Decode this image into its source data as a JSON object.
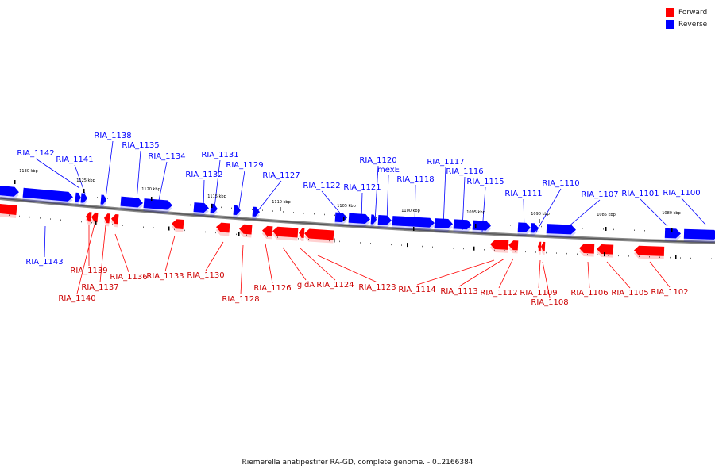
{
  "legend": {
    "forward": {
      "label": "Forward",
      "color": "#ff0000"
    },
    "reverse": {
      "label": "Reverse",
      "color": "#0000ff"
    }
  },
  "caption": "Riemerella anatipestifer RA-GD, complete genome. - 0..2166384",
  "ticks": [
    "1130 kbp",
    "1125 kbp",
    "1120 kbp",
    "1115 kbp",
    "1110 kbp",
    "1105 kbp",
    "1100 kbp",
    "1095 kbp",
    "1090 kbp",
    "1085 kbp",
    "1080 kbp"
  ],
  "reverse_labels": [
    "RIA_1142",
    "RIA_1141",
    "RIA_1138",
    "RIA_1135",
    "RIA_1134",
    "RIA_1131",
    "RIA_1132",
    "RIA_1129",
    "RIA_1127",
    "RIA_1122",
    "RIA_1121",
    "RIA_1120",
    "mexE",
    "RIA_1118",
    "RIA_1117",
    "RIA_1116",
    "RIA_1115",
    "RIA_1111",
    "RIA_1110",
    "RIA_1107",
    "RIA_1101",
    "RIA_1100",
    "RIA_1143"
  ],
  "forward_labels": [
    "RIA_1139",
    "RIA_1140",
    "RIA_1137",
    "RIA_1136",
    "RIA_1133",
    "RIA_1130",
    "RIA_1128",
    "RIA_1126",
    "gidA",
    "RIA_1124",
    "RIA_1123",
    "RIA_1114",
    "RIA_1113",
    "RIA_1112",
    "RIA_1109",
    "RIA_1108",
    "RIA_1106",
    "RIA_1105",
    "RIA_1102"
  ]
}
